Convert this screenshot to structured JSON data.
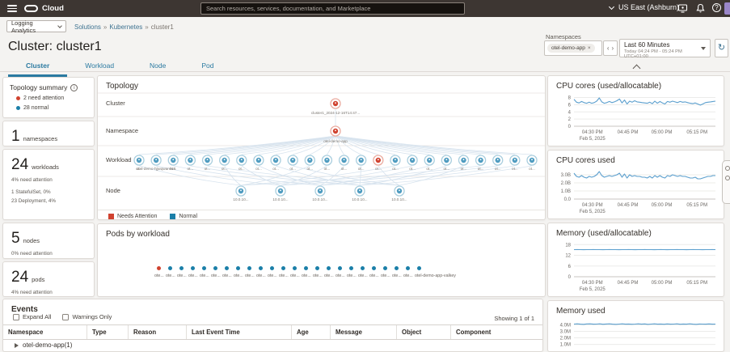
{
  "topbar": {
    "brand": "Cloud",
    "search_placeholder": "Search resources, services, documentation, and Marketplace",
    "region": "US East (Ashburn)"
  },
  "subnav": {
    "service_selector": "Logging Analytics",
    "breadcrumb": [
      "Solutions",
      "Kubernetes",
      "cluster1"
    ]
  },
  "filters": {
    "namespaces_label": "Namespaces",
    "namespace_chip": "otel-demo-app",
    "time_range": "Last 60 Minutes",
    "time_detail": "Today 04:24 PM - 05:24 PM UTC+01:00"
  },
  "page": {
    "title": "Cluster: cluster1",
    "tabs": [
      {
        "label": "Cluster",
        "active": true
      },
      {
        "label": "Workload",
        "active": false
      },
      {
        "label": "Node",
        "active": false
      },
      {
        "label": "Pod",
        "active": false
      }
    ]
  },
  "sidebar": {
    "topology_summary": {
      "title": "Topology summary",
      "items": [
        {
          "color": "#d0422f",
          "label": "2 need attention"
        },
        {
          "color": "#1b7fa8",
          "label": "28 normal"
        }
      ]
    },
    "cards": [
      {
        "value": "1",
        "unit": "namespaces",
        "lines": []
      },
      {
        "value": "24",
        "unit": "workloads",
        "lines": [
          "4% need attention",
          "1 StatefulSet, 0%",
          "23 Deployment, 4%"
        ]
      },
      {
        "value": "5",
        "unit": "nodes",
        "lines": [
          "0% need attention"
        ]
      },
      {
        "value": "24",
        "unit": "pods",
        "lines": [
          "4% need attention"
        ]
      }
    ]
  },
  "topology": {
    "title": "Topology",
    "rows": [
      "Cluster",
      "Namespace",
      "Workload",
      "Node"
    ],
    "cluster_label": "cluster1_2024-12-16T14:47...",
    "namespace_label": "otel-demo-app",
    "workloads": {
      "count": 24,
      "attention_index": 14,
      "short_label": "ot...",
      "long_label_index": 1,
      "long_label": "otel-demo-hjjwqwanhv8"
    },
    "nodes": {
      "count": 5,
      "label": "10.0.10..."
    },
    "legend": [
      {
        "label": "Needs Attention",
        "color": "#d0422f"
      },
      {
        "label": "Normal",
        "color": "#1b7fa8"
      }
    ]
  },
  "pods_panel": {
    "title": "Pods by workload",
    "dot_count": 24,
    "attention_index": 0,
    "short_label": "ote...",
    "last_label": "otel-demo-app-valkey"
  },
  "events": {
    "title": "Events",
    "expand_all": "Expand All",
    "warnings_only": "Warnings Only",
    "showing": "Showing 1 of 1",
    "columns": [
      "Namespace",
      "Type",
      "Reason",
      "Last Event Time",
      "Age",
      "Message",
      "Object",
      "Component"
    ],
    "first_row": "otel-demo-app(1)"
  },
  "chart_data": [
    {
      "type": "line",
      "title": "CPU cores (used/allocatable)",
      "ylim": [
        0,
        8.8
      ],
      "y_ticks": [
        {
          "label": "8",
          "v": 8
        },
        {
          "label": "6",
          "v": 6
        },
        {
          "label": "4",
          "v": 4
        },
        {
          "label": "2",
          "v": 2
        },
        {
          "label": "0",
          "v": 0
        }
      ],
      "x_ticks": [
        {
          "label": "04:30 PM",
          "sub": "Feb 5, 2025",
          "pos": 0.13
        },
        {
          "label": "04:45 PM",
          "pos": 0.38
        },
        {
          "label": "05:00 PM",
          "pos": 0.62
        },
        {
          "label": "05:15 PM",
          "pos": 0.87
        }
      ],
      "values": [
        7.5,
        6.7,
        6.5,
        6.9,
        6.6,
        6.4,
        6.7,
        6.4,
        6.6,
        7.0,
        7.9,
        6.8,
        6.4,
        6.6,
        6.9,
        6.6,
        6.8,
        7.1,
        7.6,
        6.5,
        7.3,
        6.2,
        7.0,
        6.7,
        7.1,
        6.8,
        6.7,
        6.6,
        6.5,
        6.4,
        6.7,
        6.3,
        7.0,
        6.4,
        6.9,
        6.5,
        6.2,
        6.9,
        6.7,
        7.0,
        6.8,
        6.6,
        6.9,
        6.7,
        6.8,
        6.6,
        6.4,
        6.3,
        6.5,
        6.2,
        5.9,
        6.2,
        6.6,
        6.7,
        6.8,
        6.9,
        7.0
      ]
    },
    {
      "type": "line",
      "title": "CPU cores used",
      "ylim": [
        0,
        3.7
      ],
      "y_ticks": [
        {
          "label": "3.0B",
          "v": 3
        },
        {
          "label": "2.0B",
          "v": 2
        },
        {
          "label": "1.0B",
          "v": 1
        },
        {
          "label": "0.0",
          "v": 0
        }
      ],
      "x_ticks": [
        {
          "label": "04:30 PM",
          "sub": "Feb 5, 2025",
          "pos": 0.13
        },
        {
          "label": "04:45 PM",
          "pos": 0.38
        },
        {
          "label": "05:00 PM",
          "pos": 0.62
        },
        {
          "label": "05:15 PM",
          "pos": 0.87
        }
      ],
      "values": [
        3.2,
        2.8,
        2.7,
        2.9,
        2.7,
        2.6,
        2.8,
        2.7,
        2.8,
        3.0,
        3.4,
        2.9,
        2.7,
        2.8,
        2.9,
        2.8,
        2.9,
        3.0,
        3.2,
        2.7,
        3.1,
        2.6,
        3.0,
        2.8,
        2.9,
        2.8,
        2.8,
        2.7,
        2.7,
        2.6,
        2.8,
        2.6,
        2.9,
        2.7,
        2.9,
        2.7,
        2.6,
        2.9,
        2.8,
        3.0,
        2.9,
        2.8,
        2.9,
        2.8,
        2.8,
        2.7,
        2.6,
        2.6,
        2.7,
        2.5,
        2.5,
        2.6,
        2.7,
        2.8,
        2.8,
        2.9,
        2.9
      ]
    },
    {
      "type": "line",
      "title": "Memory (used/allocatable)",
      "ylim": [
        0,
        19.5
      ],
      "y_ticks": [
        {
          "label": "18",
          "v": 18
        },
        {
          "label": "12",
          "v": 12
        },
        {
          "label": "6",
          "v": 6
        },
        {
          "label": "0",
          "v": 0
        }
      ],
      "x_ticks": [
        {
          "label": "04:30 PM",
          "sub": "Feb 5, 2025",
          "pos": 0.13
        },
        {
          "label": "04:45 PM",
          "pos": 0.38
        },
        {
          "label": "05:00 PM",
          "pos": 0.62
        },
        {
          "label": "05:15 PM",
          "pos": 0.87
        }
      ],
      "values": [
        15.2,
        15.25,
        15.2,
        15.15,
        15.2,
        15.2,
        15.25,
        15.2,
        15.2,
        15.15,
        15.2,
        15.25,
        15.2,
        15.2,
        15.15,
        15.2,
        15.2,
        15.25,
        15.2,
        15.15,
        15.2,
        15.2,
        15.25,
        15.2,
        15.2,
        15.15,
        15.2,
        15.25,
        15.2,
        15.15,
        15.2,
        15.2,
        15.25,
        15.2,
        15.2,
        15.15,
        15.2,
        15.25,
        15.2,
        15.2,
        15.15,
        15.2,
        15.2,
        15.25,
        15.2
      ]
    },
    {
      "type": "line",
      "title": "Memory used",
      "cut": true,
      "ylim": [
        0.7,
        4.8
      ],
      "y_ticks": [
        {
          "label": "4.0M",
          "v": 4
        },
        {
          "label": "3.0M",
          "v": 3
        },
        {
          "label": "2.0M",
          "v": 2
        },
        {
          "label": "1.0M",
          "v": 1
        }
      ],
      "x_ticks": [],
      "values": [
        4.12,
        4.15,
        4.1,
        4.08,
        4.14,
        4.16,
        4.1,
        4.12,
        4.15,
        4.09,
        4.13,
        4.16,
        4.11,
        4.08,
        4.12,
        4.15,
        4.1,
        4.13,
        4.09,
        4.12,
        4.16,
        4.1,
        4.14,
        4.08,
        4.12,
        4.15,
        4.11,
        4.13,
        4.09,
        4.14,
        4.1,
        4.12,
        4.16,
        4.09,
        4.13,
        4.1,
        4.15,
        4.11,
        4.08,
        4.13,
        4.12,
        4.1,
        4.14,
        4.11,
        4.12
      ]
    }
  ],
  "colors": {
    "accent": "#2b7aa1",
    "attention": "#d0422f",
    "normal": "#1b7fa8",
    "line": "#5b9fce"
  }
}
